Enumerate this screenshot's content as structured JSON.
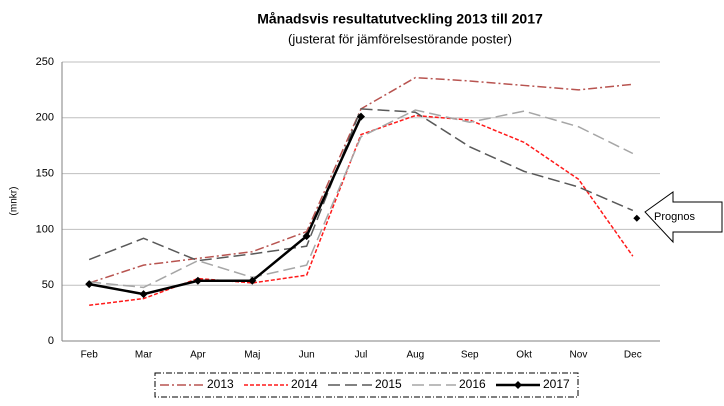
{
  "chart_data": {
    "type": "line",
    "title": "Månadsvis resultatutveckling 2013 till 2017",
    "subtitle": "(justerat för jämförelsestörande poster)",
    "y_label": "(mnkr)",
    "categories": [
      "Feb",
      "Mar",
      "Apr",
      "Maj",
      "Jun",
      "Jul",
      "Aug",
      "Sep",
      "Okt",
      "Nov",
      "Dec"
    ],
    "series": [
      {
        "name": "2013",
        "color": "#b85450",
        "line_style": "dash-dot",
        "values": [
          52,
          68,
          74,
          80,
          98,
          208,
          236,
          233,
          229,
          225,
          230
        ]
      },
      {
        "name": "2014",
        "color": "#ff1a1a",
        "line_style": "short-dash",
        "values": [
          32,
          38,
          56,
          52,
          59,
          185,
          202,
          198,
          178,
          145,
          76
        ]
      },
      {
        "name": "2015",
        "color": "#595959",
        "line_style": "long-dash",
        "values": [
          73,
          92,
          72,
          78,
          85,
          208,
          205,
          174,
          152,
          138,
          117
        ]
      },
      {
        "name": "2016",
        "color": "#a6a6a6",
        "line_style": "long-dash",
        "values": [
          53,
          48,
          72,
          57,
          68,
          183,
          207,
          196,
          206,
          192,
          168
        ]
      },
      {
        "name": "2017",
        "color": "#000000",
        "line_style": "solid-diamond",
        "values": [
          51,
          42,
          54,
          54,
          94,
          201,
          null,
          null,
          null,
          null,
          null
        ]
      }
    ],
    "forecast": {
      "label": "Prognos",
      "category": "Dec",
      "value": 110,
      "color": "#000000"
    },
    "ylim": [
      0,
      250
    ],
    "yticks": [
      0,
      50,
      100,
      150,
      200,
      250
    ],
    "grid": true,
    "legend": "bottom"
  }
}
